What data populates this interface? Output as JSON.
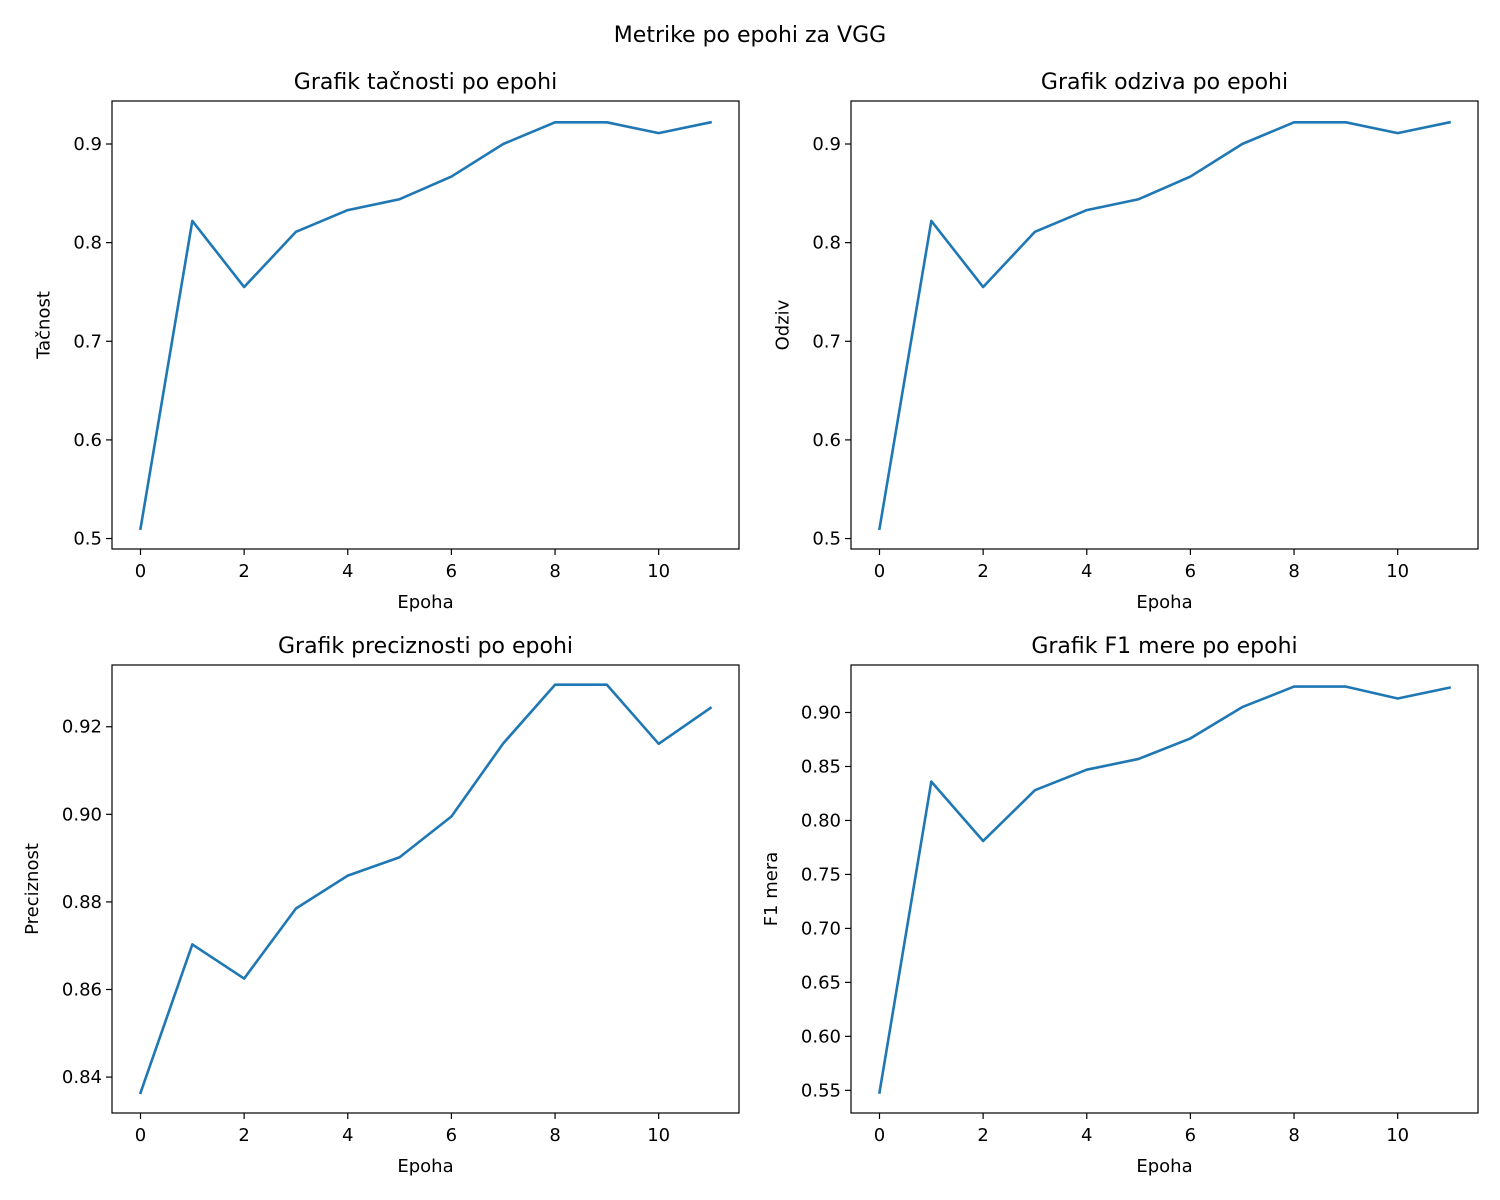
{
  "figure": {
    "suptitle": "Metrike po epohi za VGG",
    "line_color": "#1f77b4"
  },
  "chart_data": [
    {
      "type": "line",
      "title": "Grafik tačnosti po epohi",
      "xlabel": "Epoha",
      "ylabel": "Tačnost",
      "xlim": [
        -0.55,
        11.55
      ],
      "ylim": [
        0.4894,
        0.9436
      ],
      "xticks": [
        0,
        2,
        4,
        6,
        8,
        10
      ],
      "yticks": [
        0.5,
        0.6,
        0.7,
        0.8,
        0.9
      ],
      "ytick_labels": [
        "0.5",
        "0.6",
        "0.7",
        "0.8",
        "0.9"
      ],
      "grid": false,
      "series": [
        {
          "x": [
            0,
            1,
            2,
            3,
            4,
            5,
            6,
            7,
            8,
            9,
            10,
            11
          ],
          "values": [
            0.51,
            0.822,
            0.755,
            0.811,
            0.833,
            0.844,
            0.867,
            0.9,
            0.922,
            0.922,
            0.911,
            0.922
          ]
        }
      ]
    },
    {
      "type": "line",
      "title": "Grafik odziva po epohi",
      "xlabel": "Epoha",
      "ylabel": "Odziv",
      "xlim": [
        -0.55,
        11.55
      ],
      "ylim": [
        0.4894,
        0.9436
      ],
      "xticks": [
        0,
        2,
        4,
        6,
        8,
        10
      ],
      "yticks": [
        0.5,
        0.6,
        0.7,
        0.8,
        0.9
      ],
      "ytick_labels": [
        "0.5",
        "0.6",
        "0.7",
        "0.8",
        "0.9"
      ],
      "grid": false,
      "series": [
        {
          "x": [
            0,
            1,
            2,
            3,
            4,
            5,
            6,
            7,
            8,
            9,
            10,
            11
          ],
          "values": [
            0.51,
            0.822,
            0.755,
            0.811,
            0.833,
            0.844,
            0.867,
            0.9,
            0.922,
            0.922,
            0.911,
            0.922
          ]
        }
      ]
    },
    {
      "type": "line",
      "title": "Grafik preciznosti po epohi",
      "xlabel": "Epoha",
      "ylabel": "Preciznost",
      "xlim": [
        -0.55,
        11.55
      ],
      "ylim": [
        0.8318,
        0.9341
      ],
      "xticks": [
        0,
        2,
        4,
        6,
        8,
        10
      ],
      "yticks": [
        0.84,
        0.86,
        0.88,
        0.9,
        0.92
      ],
      "ytick_labels": [
        "0.84",
        "0.86",
        "0.88",
        "0.90",
        "0.92"
      ],
      "grid": false,
      "series": [
        {
          "x": [
            0,
            1,
            2,
            3,
            4,
            5,
            6,
            7,
            8,
            9,
            10,
            11
          ],
          "values": [
            0.8364,
            0.8703,
            0.8625,
            0.8785,
            0.886,
            0.8902,
            0.8995,
            0.9162,
            0.9296,
            0.9296,
            0.9161,
            0.9243
          ]
        }
      ]
    },
    {
      "type": "line",
      "title": "Grafik F1 mere po epohi",
      "xlabel": "Epoha",
      "ylabel": "F1 mera",
      "xlim": [
        -0.55,
        11.55
      ],
      "ylim": [
        0.529,
        0.944
      ],
      "xticks": [
        0,
        2,
        4,
        6,
        8,
        10
      ],
      "yticks": [
        0.55,
        0.6,
        0.65,
        0.7,
        0.75,
        0.8,
        0.85,
        0.9
      ],
      "ytick_labels": [
        "0.55",
        "0.60",
        "0.65",
        "0.70",
        "0.75",
        "0.80",
        "0.85",
        "0.90"
      ],
      "grid": false,
      "series": [
        {
          "x": [
            0,
            1,
            2,
            3,
            4,
            5,
            6,
            7,
            8,
            9,
            10,
            11
          ],
          "values": [
            0.548,
            0.836,
            0.781,
            0.828,
            0.847,
            0.857,
            0.876,
            0.905,
            0.924,
            0.924,
            0.913,
            0.923
          ]
        }
      ]
    }
  ]
}
